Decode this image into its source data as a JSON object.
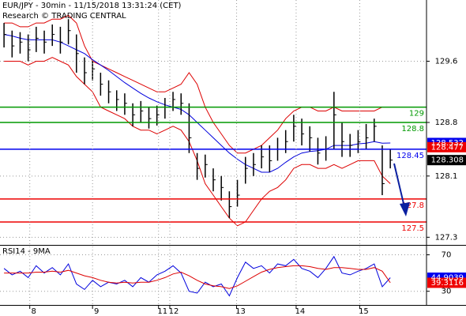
{
  "chart_data": [
    {
      "type": "ohlc",
      "title": "EUR/JPY - 30min - 11/15/2018 13:31:24 (CET)",
      "subtitle": "Research © TRADING CENTRAL",
      "high": [
        130.1,
        130.0,
        129.98,
        129.95,
        130.05,
        130.0,
        130.08,
        130.05,
        130.15,
        129.95,
        129.65,
        129.6,
        129.45,
        129.35,
        129.22,
        129.18,
        129.05,
        129.08,
        129.0,
        129.02,
        129.12,
        129.2,
        129.18,
        129.05,
        128.4,
        128.38,
        128.2,
        128.1,
        127.9,
        128.05,
        128.35,
        128.4,
        128.5,
        128.5,
        128.6,
        128.7,
        128.9,
        128.85,
        128.75,
        128.6,
        128.62,
        129.2,
        128.8,
        128.65,
        128.7,
        128.78,
        128.85,
        128.5,
        128.45
      ],
      "low": [
        129.78,
        129.65,
        129.7,
        129.6,
        129.72,
        129.7,
        129.8,
        129.7,
        129.82,
        129.45,
        129.3,
        129.35,
        129.15,
        129.05,
        128.95,
        128.9,
        128.75,
        128.8,
        128.72,
        128.76,
        128.85,
        128.95,
        128.9,
        128.4,
        128.05,
        128.08,
        127.9,
        127.78,
        127.55,
        127.7,
        128.0,
        128.1,
        128.2,
        128.15,
        128.3,
        128.4,
        128.55,
        128.5,
        128.42,
        128.25,
        128.3,
        128.45,
        128.35,
        128.35,
        128.4,
        128.45,
        128.55,
        127.85,
        128.2
      ],
      "close": [
        129.95,
        129.8,
        129.85,
        129.75,
        129.9,
        129.85,
        129.95,
        129.85,
        130.0,
        129.7,
        129.45,
        129.5,
        129.3,
        129.2,
        129.1,
        129.05,
        128.9,
        128.95,
        128.85,
        128.9,
        129.0,
        129.1,
        129.05,
        128.6,
        128.2,
        128.25,
        128.05,
        127.95,
        127.7,
        127.85,
        128.2,
        128.25,
        128.35,
        128.3,
        128.45,
        128.55,
        128.75,
        128.65,
        128.6,
        128.4,
        128.45,
        128.9,
        128.55,
        128.5,
        128.55,
        128.6,
        128.75,
        128.0,
        128.308
      ],
      "color": "#000000",
      "overlays": [
        {
          "color": "#dd0000",
          "values": [
            130.1,
            130.1,
            130.05,
            130.05,
            130.1,
            130.1,
            130.15,
            130.15,
            130.2,
            130.1,
            129.8,
            129.6,
            129.55,
            129.5,
            129.45,
            129.4,
            129.35,
            129.3,
            129.25,
            129.2,
            129.2,
            129.25,
            129.3,
            129.45,
            129.3,
            129.0,
            128.8,
            128.65,
            128.5,
            128.4,
            128.4,
            128.45,
            128.5,
            128.6,
            128.7,
            128.85,
            128.95,
            129.0,
            129.0,
            128.95,
            128.95,
            129.0,
            128.95,
            128.95,
            128.95,
            128.95,
            128.95,
            129.0,
            129.0
          ]
        },
        {
          "color": "#dd0000",
          "values": [
            129.6,
            129.6,
            129.6,
            129.55,
            129.6,
            129.6,
            129.65,
            129.6,
            129.55,
            129.4,
            129.3,
            129.2,
            129.0,
            128.95,
            128.9,
            128.85,
            128.75,
            128.7,
            128.7,
            128.65,
            128.7,
            128.75,
            128.7,
            128.55,
            128.3,
            128.0,
            127.85,
            127.7,
            127.55,
            127.45,
            127.5,
            127.65,
            127.8,
            127.9,
            127.95,
            128.05,
            128.2,
            128.25,
            128.25,
            128.2,
            128.2,
            128.25,
            128.2,
            128.25,
            128.3,
            128.3,
            128.3,
            128.1,
            128.0
          ]
        },
        {
          "color": "#0000dd",
          "values": [
            129.95,
            129.93,
            129.9,
            129.88,
            129.88,
            129.88,
            129.88,
            129.85,
            129.8,
            129.75,
            129.7,
            129.62,
            129.55,
            129.48,
            129.4,
            129.32,
            129.25,
            129.18,
            129.12,
            129.07,
            129.03,
            129.0,
            128.97,
            128.9,
            128.8,
            128.7,
            128.6,
            128.5,
            128.4,
            128.32,
            128.25,
            128.2,
            128.15,
            128.15,
            128.2,
            128.28,
            128.35,
            128.4,
            128.42,
            128.43,
            128.45,
            128.5,
            128.5,
            128.5,
            128.52,
            128.53,
            128.55,
            128.53,
            128.532
          ]
        }
      ],
      "levels": [
        {
          "value": 129,
          "color": "#009900"
        },
        {
          "value": 128.8,
          "color": "#009900"
        },
        {
          "value": 128.45,
          "color": "#0000ee"
        },
        {
          "value": 127.8,
          "color": "#ee0000"
        },
        {
          "value": 127.5,
          "color": "#ee0000"
        }
      ],
      "price_tags": [
        {
          "value": 128.532,
          "color": "#0000ee"
        },
        {
          "value": 128.477,
          "color": "#ee0000"
        },
        {
          "value": 128.308,
          "color": "#000000"
        }
      ],
      "xlim": [
        -0.5,
        52.5
      ],
      "ylim": [
        127.2,
        130.4
      ],
      "yticks": [
        129.6,
        128.8,
        128.1,
        127.3
      ],
      "grid": true
    },
    {
      "type": "line",
      "title": "RSI14 - 9MA",
      "series": [
        {
          "color": "#0000dd",
          "values": [
            55,
            48,
            52,
            45,
            58,
            50,
            56,
            48,
            60,
            38,
            32,
            42,
            35,
            40,
            38,
            42,
            35,
            45,
            40,
            48,
            52,
            58,
            50,
            30,
            28,
            40,
            35,
            38,
            25,
            45,
            62,
            55,
            58,
            50,
            60,
            58,
            65,
            55,
            52,
            45,
            55,
            68,
            50,
            48,
            52,
            55,
            60,
            35,
            44.9039
          ]
        },
        {
          "color": "#dd0000",
          "values": [
            50,
            50,
            50,
            50,
            51,
            51,
            52,
            51,
            53,
            50,
            47,
            45,
            42,
            40,
            39,
            40,
            39,
            40,
            40,
            42,
            45,
            49,
            51,
            47,
            42,
            38,
            36,
            35,
            33,
            36,
            41,
            46,
            51,
            54,
            56,
            57,
            58,
            58,
            57,
            55,
            54,
            56,
            56,
            55,
            54,
            54,
            56,
            52,
            39.3116
          ]
        }
      ],
      "tags": [
        {
          "value": 44.9039,
          "color": "#0000ee"
        },
        {
          "value": 39.3116,
          "color": "#ee0000"
        }
      ],
      "xlim": [
        -0.5,
        52.5
      ],
      "xticks": [
        {
          "value": 3.2,
          "label": "8"
        },
        {
          "value": 11,
          "label": "9"
        },
        {
          "value": 19.2,
          "label": "11"
        },
        {
          "value": 20.6,
          "label": "12"
        },
        {
          "value": 28.9,
          "label": "13"
        },
        {
          "value": 36.3,
          "label": "14"
        },
        {
          "value": 44.2,
          "label": "15"
        }
      ],
      "ylim": [
        15,
        80
      ],
      "yticks": [
        70,
        30
      ],
      "grid": true
    }
  ]
}
